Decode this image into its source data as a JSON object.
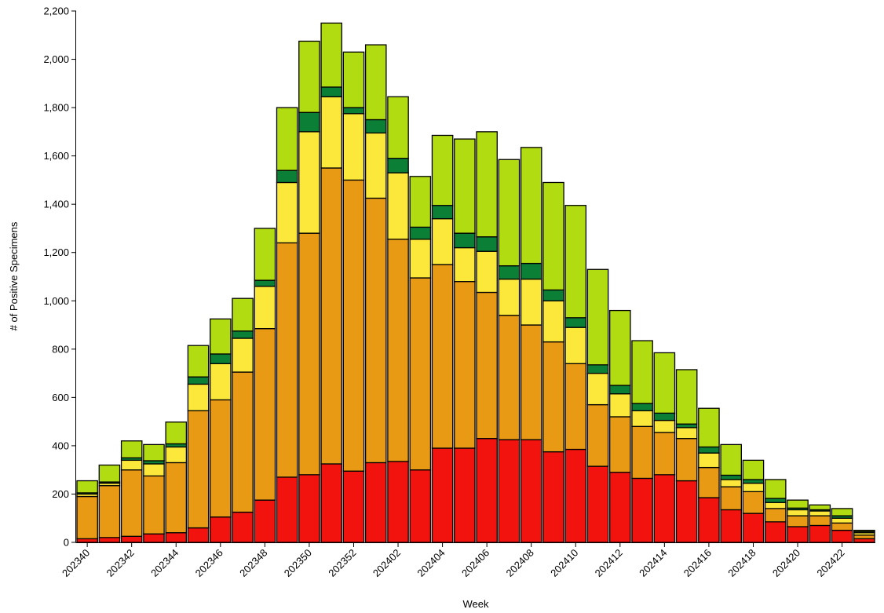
{
  "chart_data": {
    "type": "stacked-bar",
    "x_label": "Week",
    "y_label": "# of Positive Specimens",
    "categories": [
      "202340",
      null,
      "202342",
      null,
      "202344",
      null,
      "202346",
      null,
      "202348",
      null,
      "202350",
      null,
      "202352",
      null,
      "202402",
      null,
      "202404",
      null,
      "202406",
      null,
      "202408",
      null,
      "202410",
      null,
      "202412",
      null,
      "202414",
      null,
      "202416",
      null,
      "202418",
      null,
      "202420",
      null,
      "202422",
      null
    ],
    "series": [
      {
        "color": "#f2130e",
        "values": [
          15,
          20,
          25,
          35,
          40,
          60,
          105,
          125,
          175,
          270,
          280,
          325,
          295,
          330,
          335,
          300,
          390,
          390,
          430,
          425,
          425,
          375,
          385,
          315,
          290,
          265,
          280,
          255,
          185,
          135,
          120,
          85,
          65,
          70,
          50,
          15
        ]
      },
      {
        "color": "#e89a14",
        "values": [
          175,
          215,
          275,
          240,
          290,
          485,
          485,
          580,
          710,
          970,
          1000,
          1225,
          1205,
          1095,
          920,
          795,
          760,
          690,
          605,
          515,
          475,
          455,
          355,
          255,
          230,
          215,
          175,
          175,
          125,
          95,
          90,
          55,
          45,
          40,
          30,
          15
        ]
      },
      {
        "color": "#fce83a",
        "values": [
          10,
          10,
          40,
          50,
          65,
          110,
          150,
          140,
          175,
          250,
          420,
          295,
          275,
          270,
          275,
          160,
          190,
          140,
          170,
          150,
          190,
          170,
          150,
          130,
          95,
          65,
          50,
          45,
          60,
          30,
          35,
          25,
          25,
          20,
          20,
          10
        ]
      },
      {
        "color": "#0b7f36",
        "values": [
          5,
          5,
          10,
          13,
          13,
          30,
          40,
          30,
          25,
          50,
          80,
          40,
          25,
          55,
          60,
          50,
          55,
          60,
          60,
          55,
          65,
          45,
          40,
          35,
          35,
          30,
          30,
          15,
          25,
          18,
          15,
          17,
          7,
          5,
          10,
          5
        ]
      },
      {
        "color": "#b1dc12",
        "values": [
          50,
          70,
          70,
          67,
          90,
          130,
          145,
          135,
          215,
          260,
          295,
          265,
          230,
          310,
          255,
          210,
          290,
          390,
          435,
          440,
          480,
          445,
          465,
          395,
          310,
          260,
          250,
          225,
          160,
          127,
          80,
          78,
          33,
          20,
          30,
          5
        ]
      }
    ],
    "ylim": [
      0,
      2200
    ],
    "yticks": [
      0,
      200,
      400,
      600,
      800,
      {
        "value": 1000,
        "label": "1,000"
      },
      {
        "value": 1200,
        "label": "1,200"
      },
      {
        "value": 1400,
        "label": "1,400"
      },
      {
        "value": 1600,
        "label": "1,600"
      },
      {
        "value": 1800,
        "label": "1,800"
      },
      {
        "value": 2000,
        "label": "2,000"
      },
      {
        "value": 2200,
        "label": "2,200"
      }
    ],
    "grid": false
  }
}
